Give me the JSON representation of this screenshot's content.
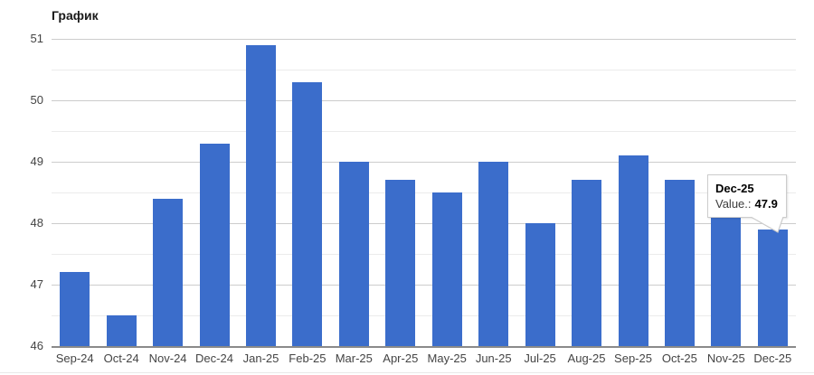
{
  "page": {
    "title": "График"
  },
  "tooltip": {
    "category": "Dec-25",
    "series_label": "Value.:",
    "value": "47.9"
  },
  "colors": {
    "bar": "#3b6dcb",
    "grid_major": "#cccccc",
    "grid_minor": "#ebebeb",
    "baseline": "#8a8a8a",
    "axis_text": "#444444",
    "title_text": "#1a1a1a",
    "tooltip_bg": "#ffffff",
    "tooltip_border": "#cccccc",
    "bottom_rule": "#e8e8e8"
  },
  "chart_data": {
    "type": "bar",
    "title": "График",
    "categories": [
      "Sep-24",
      "Oct-24",
      "Nov-24",
      "Dec-24",
      "Jan-25",
      "Feb-25",
      "Mar-25",
      "Apr-25",
      "May-25",
      "Jun-25",
      "Jul-25",
      "Aug-25",
      "Sep-25",
      "Oct-25",
      "Nov-25",
      "Dec-25"
    ],
    "values": [
      47.2,
      46.5,
      48.4,
      49.3,
      50.9,
      50.3,
      49.0,
      48.7,
      48.5,
      49.0,
      48.0,
      48.7,
      49.1,
      48.7,
      48.1,
      47.9
    ],
    "xlabel": "",
    "ylabel": "",
    "ylim": [
      46,
      51
    ],
    "y_major_ticks": [
      46,
      47,
      48,
      49,
      50,
      51
    ],
    "y_minor_ticks": [
      46.5,
      47.5,
      48.5,
      49.5,
      50.5
    ],
    "grid": true,
    "legend": "none",
    "bar_color": "#3b6dcb",
    "highlighted_category": "Dec-25",
    "highlighted_value": "47.9"
  }
}
